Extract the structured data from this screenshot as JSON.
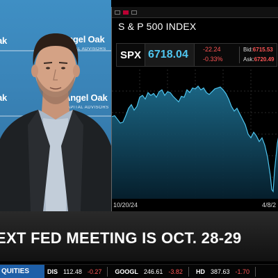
{
  "video": {
    "logo_top_left": "ak",
    "logo_top_right": "Angel Oak",
    "logo_top_right_sub": "CAPITAL ADVISORS",
    "logo_mid_left": "ak",
    "logo_mid_right": "Angel Oak",
    "logo_mid_right_sub": "CAPITAL ADVISORS"
  },
  "chart_panel": {
    "title": "S & P 500 INDEX",
    "quote": {
      "symbol": "SPX",
      "price": "6718.04",
      "change": "-22.24",
      "change_pct": "-0.33%",
      "bid_label": "Bid:",
      "bid_value": "6715.53",
      "ask_label": "Ask:",
      "ask_value": "6720.49"
    }
  },
  "chart_data": {
    "type": "area",
    "title": "S & P 500 INDEX",
    "x_tick_labels": [
      "10/20/24",
      "4/8/2"
    ],
    "x": [
      0,
      4,
      8,
      12,
      16,
      20,
      24,
      28,
      32,
      36,
      40,
      44,
      48,
      52,
      56,
      60,
      64,
      68,
      72,
      76,
      80,
      84,
      88,
      92,
      96,
      100,
      104,
      108,
      112,
      116,
      120,
      124,
      128,
      132,
      136,
      140,
      144,
      148,
      152,
      156,
      160,
      164,
      168,
      172,
      176,
      180,
      184,
      188,
      192,
      196,
      200,
      204,
      208,
      212,
      216,
      220,
      224,
      228,
      230,
      232,
      234,
      236,
      238,
      240
    ],
    "y": [
      5790,
      5800,
      5760,
      5720,
      5730,
      5800,
      5880,
      5920,
      5860,
      5900,
      6000,
      6020,
      5980,
      6050,
      6020,
      6040,
      6000,
      6060,
      6080,
      6020,
      6060,
      6050,
      6010,
      5980,
      5950,
      6010,
      6000,
      6080,
      6050,
      6100,
      6090,
      6120,
      6080,
      6100,
      6050,
      6030,
      6060,
      6090,
      6100,
      6110,
      6080,
      6040,
      5980,
      5900,
      5850,
      5880,
      5820,
      5760,
      5700,
      5600,
      5560,
      5620,
      5580,
      5520,
      5560,
      5480,
      5350,
      5150,
      5000,
      4980,
      5200,
      5350,
      5500,
      5580
    ],
    "series_color": "#4fc6f0",
    "grid": true,
    "ylim": [
      4900,
      6300
    ]
  },
  "headline": {
    "text": "EXT FED MEETING IS OCT. 28-29"
  },
  "ticker": {
    "label": "QUITIES",
    "items": [
      {
        "sym": "DIS",
        "price": "112.48",
        "chg": "-0.27"
      },
      {
        "sym": "GOOGL",
        "price": "246.61",
        "chg": "-3.82"
      },
      {
        "sym": "HD",
        "price": "387.63",
        "chg": "-1.70"
      }
    ]
  }
}
